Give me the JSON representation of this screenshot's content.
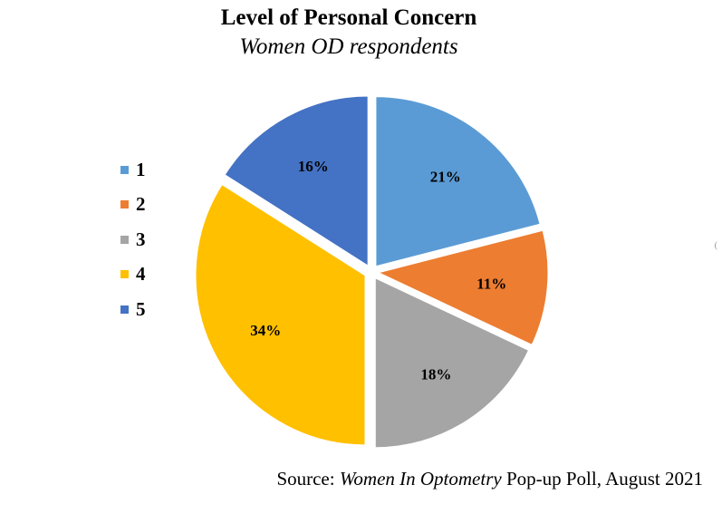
{
  "chart_data": {
    "type": "pie",
    "title": "Level of Personal Concern",
    "subtitle": "Women OD respondents",
    "slices": [
      {
        "label": "1",
        "value": 21,
        "display": "21%",
        "color": "#5B9BD5"
      },
      {
        "label": "2",
        "value": 11,
        "display": "11%",
        "color": "#ED7D31"
      },
      {
        "label": "3",
        "value": 18,
        "display": "18%",
        "color": "#A5A5A5"
      },
      {
        "label": "4",
        "value": 34,
        "display": "34%",
        "color": "#FFC000"
      },
      {
        "label": "5",
        "value": 16,
        "display": "16%",
        "color": "#4472C4"
      }
    ],
    "legend_placement": "left",
    "exploded": true
  },
  "source": {
    "prefix": "Source: ",
    "publication": "Women In Optometry",
    "suffix": " Pop-up Poll, August 2021"
  }
}
